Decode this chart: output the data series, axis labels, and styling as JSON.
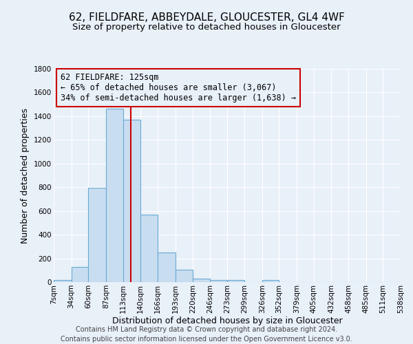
{
  "title": "62, FIELDFARE, ABBEYDALE, GLOUCESTER, GL4 4WF",
  "subtitle": "Size of property relative to detached houses in Gloucester",
  "xlabel": "Distribution of detached houses by size in Gloucester",
  "ylabel": "Number of detached properties",
  "bin_edges": [
    7,
    34,
    60,
    87,
    113,
    140,
    166,
    193,
    220,
    246,
    273,
    299,
    326,
    352,
    379,
    405,
    432,
    458,
    485,
    511,
    538
  ],
  "bin_labels": [
    "7sqm",
    "34sqm",
    "60sqm",
    "87sqm",
    "113sqm",
    "140sqm",
    "166sqm",
    "193sqm",
    "220sqm",
    "246sqm",
    "273sqm",
    "299sqm",
    "326sqm",
    "352sqm",
    "379sqm",
    "405sqm",
    "432sqm",
    "458sqm",
    "485sqm",
    "511sqm",
    "538sqm"
  ],
  "bar_heights": [
    15,
    130,
    795,
    1465,
    1370,
    570,
    250,
    105,
    30,
    20,
    15,
    0,
    15,
    0,
    0,
    0,
    0,
    0,
    0,
    0
  ],
  "bar_color": "#c8ddf0",
  "bar_edge_color": "#6aaad4",
  "vline_x": 125,
  "vline_color": "#cc0000",
  "annotation_box_text": "62 FIELDFARE: 125sqm\n← 65% of detached houses are smaller (3,067)\n34% of semi-detached houses are larger (1,638) →",
  "box_edge_color": "#cc0000",
  "ylim": [
    0,
    1800
  ],
  "yticks": [
    0,
    200,
    400,
    600,
    800,
    1000,
    1200,
    1400,
    1600,
    1800
  ],
  "footer_line1": "Contains HM Land Registry data © Crown copyright and database right 2024.",
  "footer_line2": "Contains public sector information licensed under the Open Government Licence v3.0.",
  "background_color": "#e8f0f8",
  "grid_color": "#d0dce8",
  "title_fontsize": 11,
  "subtitle_fontsize": 9.5,
  "axis_label_fontsize": 9,
  "tick_fontsize": 7.5,
  "annotation_fontsize": 8.5,
  "footer_fontsize": 7
}
